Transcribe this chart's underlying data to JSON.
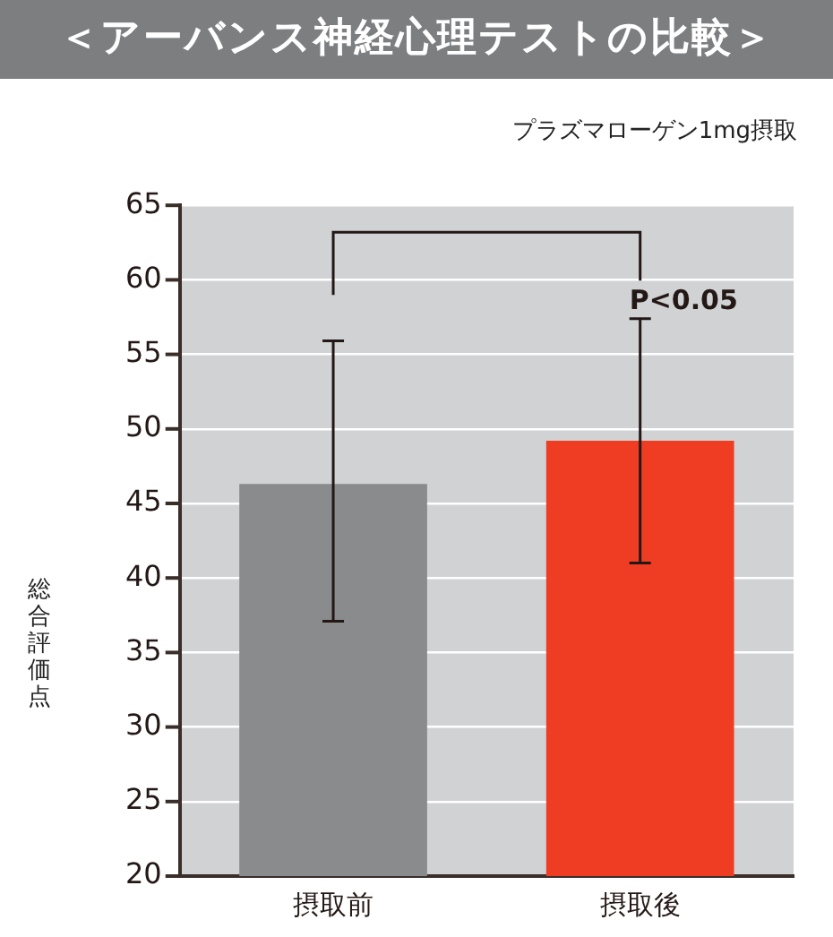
{
  "chart_data": {
    "type": "bar",
    "title": "＜アーバンス神経心理テストの比較＞",
    "subtitle": "プラズマローゲン1mg摂取",
    "ylabel": "総合評価点",
    "categories": [
      "摂取前",
      "摂取後"
    ],
    "values": [
      46.3,
      49.2
    ],
    "colors": [
      "#8a8b8d",
      "#ee3d23"
    ],
    "errors": [
      [
        37.1,
        55.9
      ],
      [
        41.0,
        57.4
      ]
    ],
    "ylim": [
      20,
      65
    ],
    "yticks": [
      20,
      25,
      30,
      35,
      40,
      45,
      50,
      55,
      60,
      65
    ],
    "grid": "y",
    "annotations": [
      "P<0.05"
    ],
    "legend": false
  }
}
